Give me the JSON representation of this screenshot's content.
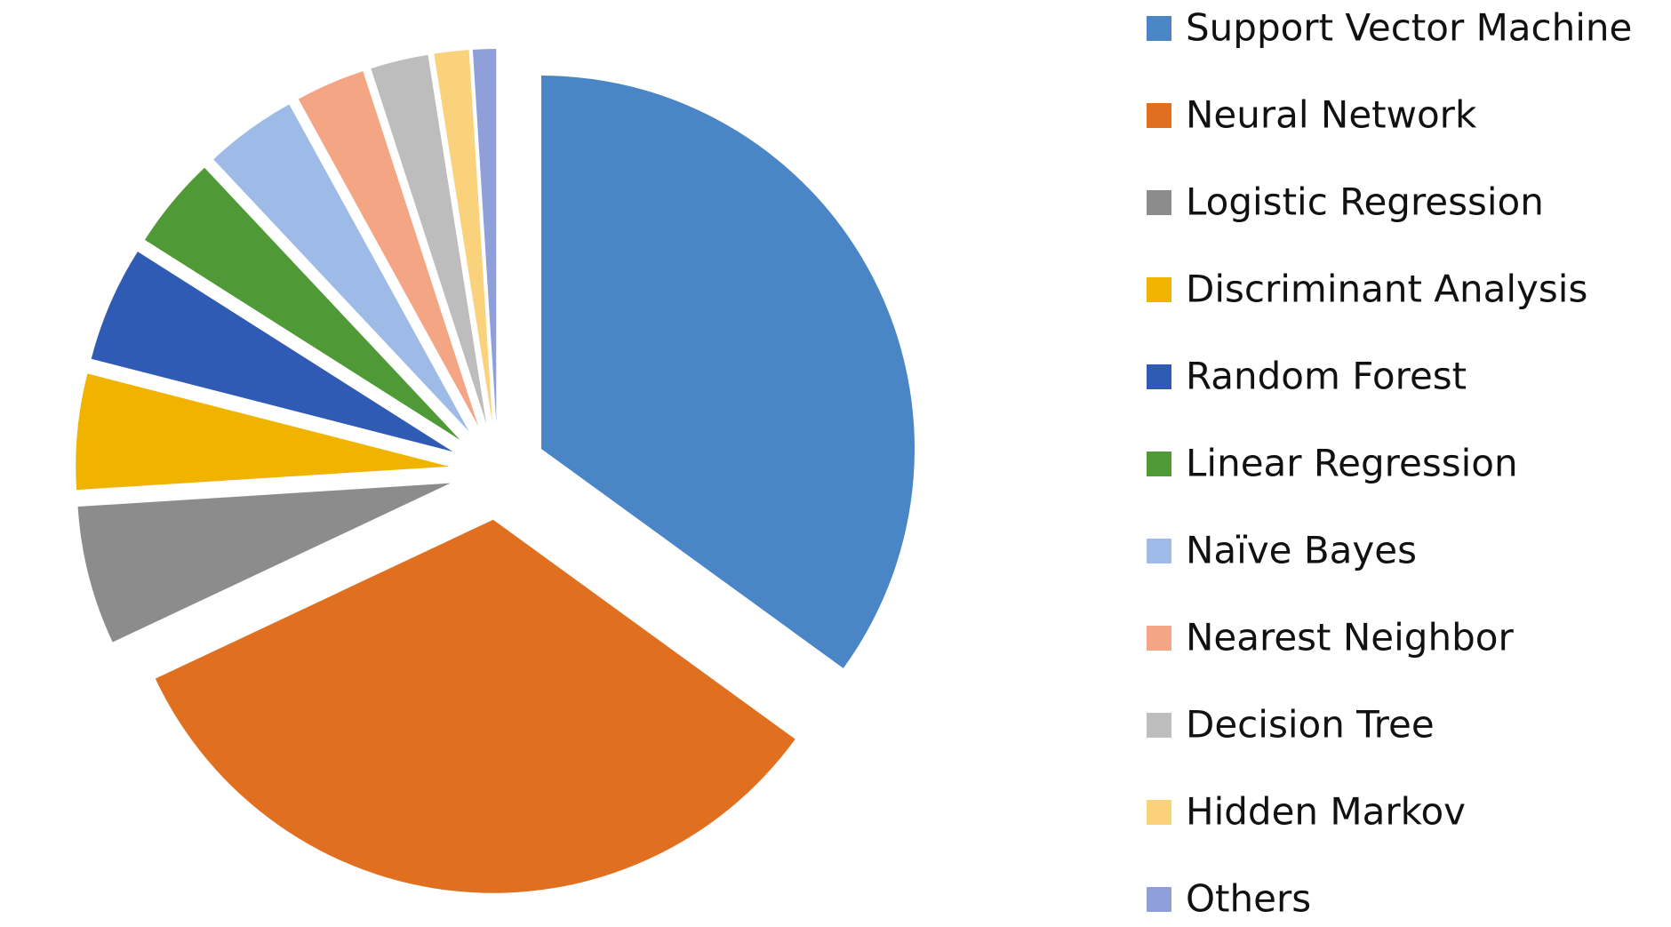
{
  "chart_data": {
    "type": "pie",
    "exploded": true,
    "start_angle": 0,
    "direction": "clockwise",
    "categories": [
      "Support Vector Machine",
      "Neural Network",
      "Logistic Regression",
      "Discriminant Analysis",
      "Random Forest",
      "Linear Regression",
      "Naïve Bayes",
      "Nearest Neighbor",
      "Decision Tree",
      "Hidden Markov",
      "Others"
    ],
    "values": [
      35,
      33,
      6,
      5,
      5,
      4,
      4,
      3,
      2.5,
      1.5,
      1
    ],
    "colors": [
      "#4a86c5",
      "#e07020",
      "#8c8c8c",
      "#f0b400",
      "#2f5bb5",
      "#4f9a36",
      "#9dbbe6",
      "#f4a584",
      "#bdbdbd",
      "#fbd27c",
      "#8f9fd9"
    ],
    "legend": "right"
  }
}
